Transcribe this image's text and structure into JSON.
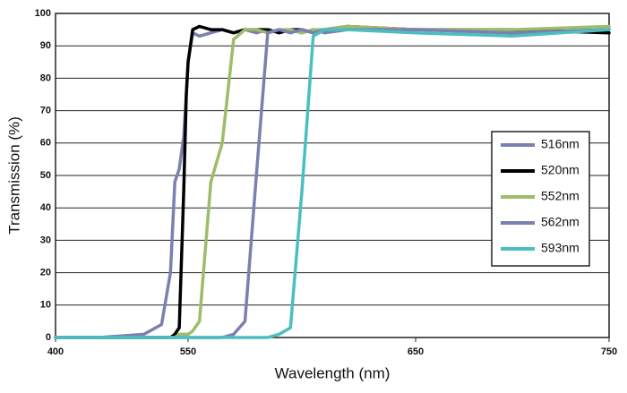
{
  "chart_data": {
    "type": "line",
    "xlabel": "Wavelength (nm)",
    "ylabel": "Transmission (%)",
    "x": [
      400,
      450,
      500,
      520,
      530,
      535,
      540,
      545,
      548,
      550,
      552,
      555,
      560,
      565,
      570,
      575,
      580,
      585,
      590,
      595,
      600,
      605,
      610,
      620,
      650,
      700,
      750
    ],
    "series": [
      {
        "name": "516nm",
        "color": "#7b80b0",
        "values": [
          0,
          0,
          1,
          4,
          20,
          48,
          52,
          62,
          75,
          85,
          94,
          93,
          94,
          95,
          94,
          95,
          94,
          95,
          94,
          95,
          94,
          95,
          94,
          95,
          95,
          94,
          95
        ]
      },
      {
        "name": "520nm",
        "color": "#000000",
        "values": [
          0,
          0,
          0,
          0,
          0,
          1,
          3,
          45,
          75,
          85,
          95,
          96,
          95,
          95,
          94,
          95,
          95,
          95,
          94,
          95,
          95,
          94,
          95,
          96,
          95,
          95,
          94
        ]
      },
      {
        "name": "552nm",
        "color": "#9dbd6a",
        "values": [
          0,
          0,
          0,
          0,
          0,
          0,
          1,
          1,
          1,
          1,
          2,
          5,
          48,
          60,
          92,
          95,
          95,
          94,
          95,
          95,
          94,
          95,
          95,
          96,
          95,
          95,
          96
        ]
      },
      {
        "name": "562nm",
        "color": "#7b80b0",
        "values": [
          0,
          0,
          0,
          0,
          0,
          0,
          0,
          0,
          0,
          0,
          0,
          0,
          0,
          0,
          1,
          5,
          50,
          94,
          95,
          94,
          95,
          94,
          95,
          95,
          95,
          94,
          95
        ]
      },
      {
        "name": "593nm",
        "color": "#4bbfc0",
        "values": [
          0,
          0,
          0,
          0,
          0,
          0,
          0,
          0,
          0,
          0,
          0,
          0,
          0,
          0,
          0,
          0,
          0,
          0,
          1,
          3,
          45,
          93,
          95,
          95,
          94,
          93,
          95
        ]
      }
    ],
    "xlim": [
      400,
      750
    ],
    "xticks": [
      400,
      550,
      650,
      750
    ],
    "ylim": [
      0,
      100
    ],
    "yticks": [
      0,
      10,
      20,
      30,
      40,
      50,
      60,
      70,
      80,
      90,
      100
    ],
    "grid": true,
    "legend": "right"
  }
}
